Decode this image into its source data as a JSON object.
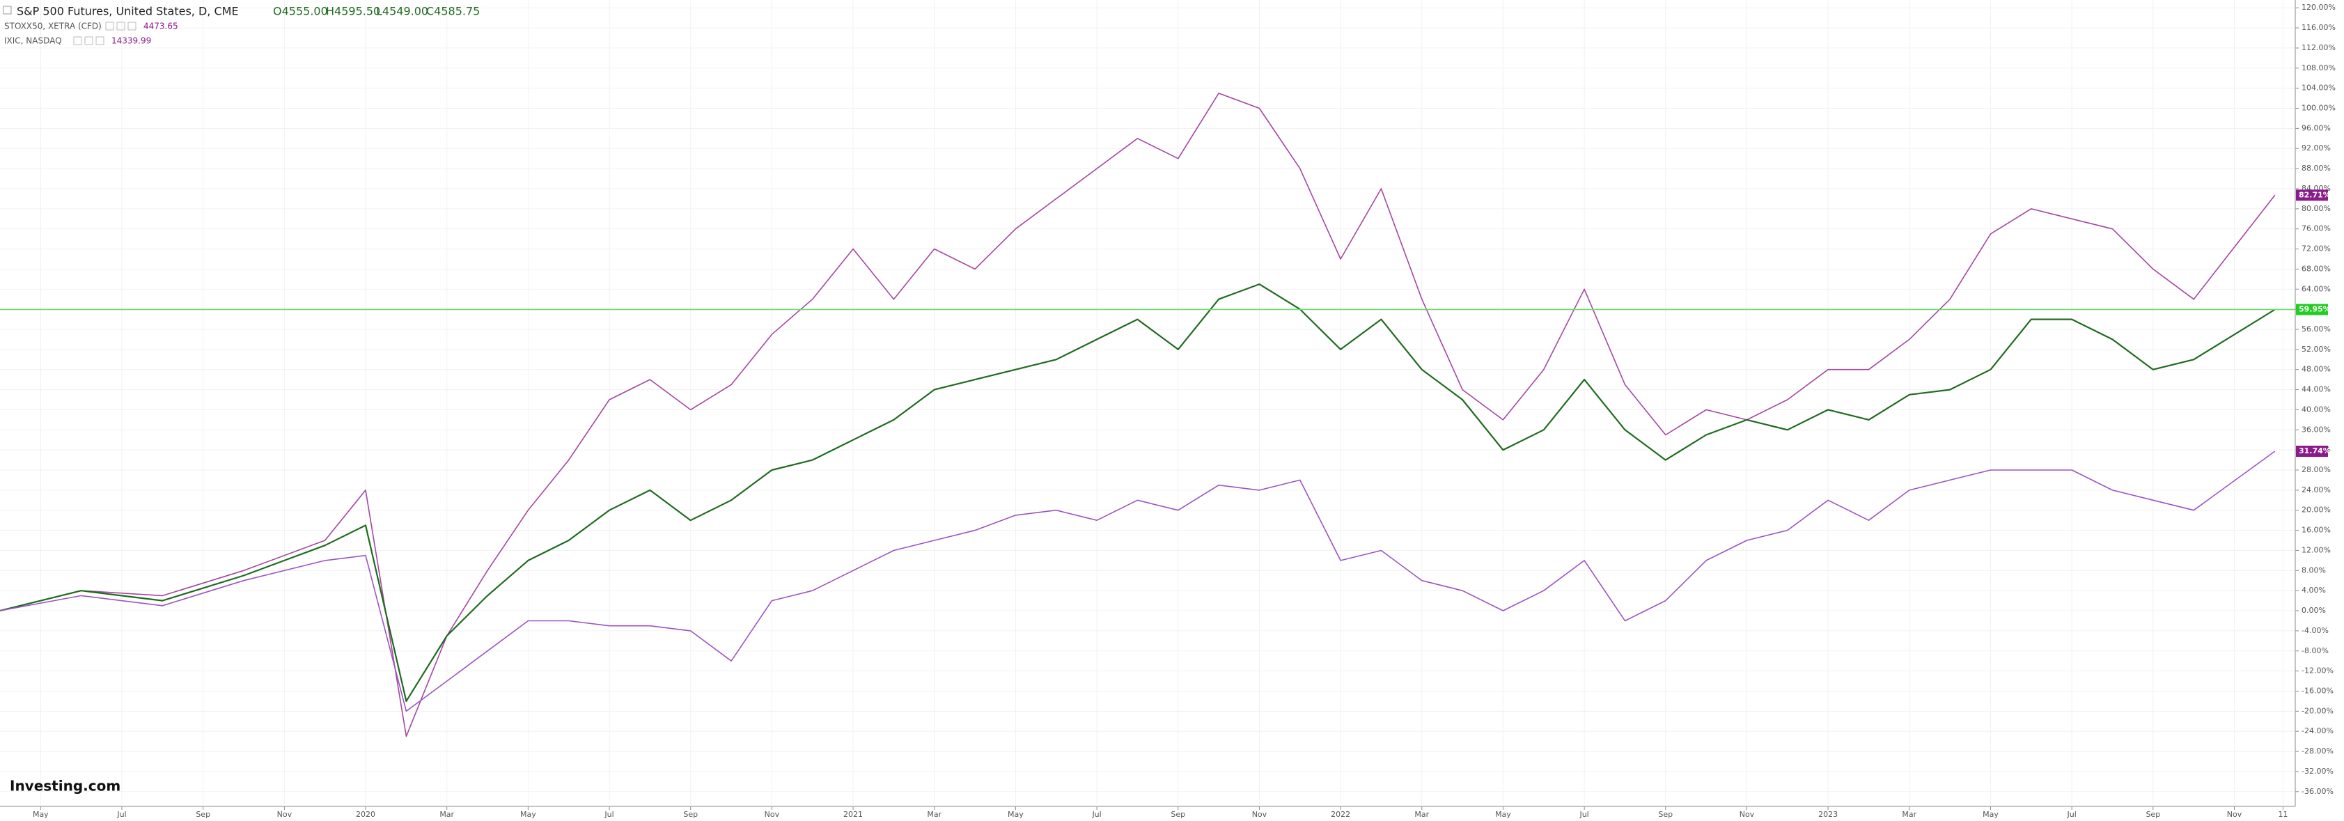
{
  "chart_data": {
    "type": "line",
    "title": "S&P 500 Futures, United States, D, CME",
    "ohlc": [
      "O4555.00",
      "H4595.50",
      "L4549.00",
      "C4585.75"
    ],
    "watermark": "Investing.com",
    "x": [
      -1,
      1,
      3,
      5,
      7,
      8,
      9,
      10,
      11,
      12,
      13,
      14,
      15,
      16,
      17,
      18,
      19,
      20,
      21,
      22,
      23,
      24,
      25,
      26,
      27,
      28,
      29,
      30,
      31,
      32,
      33,
      34,
      35,
      36,
      37,
      38,
      39,
      40,
      41,
      42,
      43,
      44,
      45,
      46,
      47,
      48,
      49,
      50,
      51,
      52,
      53,
      55
    ],
    "series": [
      {
        "name": "IXIC, NASDAQ",
        "legend_value": "14339.99",
        "color": "#a3479f",
        "values": [
          0,
          4,
          3,
          8,
          14,
          24,
          -25,
          -5,
          8,
          20,
          30,
          42,
          46,
          40,
          45,
          55,
          62,
          72,
          62,
          72,
          68,
          76,
          82,
          88,
          94,
          90,
          103,
          100,
          88,
          70,
          84,
          62,
          44,
          38,
          48,
          64,
          45,
          35,
          40,
          38,
          42,
          48,
          48,
          54,
          62,
          75,
          80,
          78,
          76,
          68,
          62,
          82.71
        ],
        "value_labels": [
          null,
          null,
          null,
          null,
          null,
          null,
          null,
          null,
          null,
          null,
          null,
          null,
          null,
          null,
          null,
          null,
          null,
          null,
          null,
          null,
          null,
          null,
          null,
          null,
          null,
          null,
          null,
          null,
          null,
          null,
          null,
          null,
          null,
          null,
          null,
          null,
          null,
          null,
          null,
          null,
          null,
          null,
          null,
          null,
          null,
          null,
          null,
          null,
          null,
          null,
          null,
          "82.71%"
        ],
        "label_color": "#8b1a8b"
      },
      {
        "name": "S&P 500 Futures",
        "color": "#1f6b1f",
        "price_line": true,
        "values": [
          0,
          4,
          2,
          7,
          13,
          17,
          -18,
          -5,
          3,
          10,
          14,
          20,
          24,
          18,
          22,
          28,
          30,
          34,
          38,
          44,
          46,
          48,
          50,
          54,
          58,
          52,
          62,
          65,
          60,
          52,
          58,
          48,
          42,
          32,
          36,
          46,
          36,
          30,
          35,
          38,
          36,
          40,
          38,
          43,
          44,
          48,
          58,
          58,
          54,
          48,
          50,
          59.95
        ],
        "value_labels": [
          null,
          null,
          null,
          null,
          null,
          null,
          null,
          null,
          null,
          null,
          null,
          null,
          null,
          null,
          null,
          null,
          null,
          null,
          null,
          null,
          null,
          null,
          null,
          null,
          null,
          null,
          null,
          null,
          null,
          null,
          null,
          null,
          null,
          null,
          null,
          null,
          null,
          null,
          null,
          null,
          null,
          null,
          null,
          null,
          null,
          null,
          null,
          null,
          null,
          null,
          null,
          "59.95%"
        ],
        "label_color": "#22cc22"
      },
      {
        "name": "STOXX50, XETRA (CFD)",
        "legend_value": "4473.65",
        "color": "#9b55c0",
        "values": [
          0,
          3,
          1,
          6,
          10,
          11,
          -20,
          -14,
          -8,
          -2,
          -2,
          -3,
          -3,
          -4,
          -10,
          2,
          4,
          8,
          12,
          14,
          16,
          19,
          20,
          18,
          22,
          20,
          25,
          24,
          26,
          10,
          12,
          6,
          4,
          0,
          4,
          10,
          -2,
          2,
          10,
          14,
          16,
          22,
          18,
          24,
          26,
          28,
          28,
          28,
          24,
          22,
          20,
          31.74
        ],
        "value_labels": [
          null,
          null,
          null,
          null,
          null,
          null,
          null,
          null,
          null,
          null,
          null,
          null,
          null,
          null,
          null,
          null,
          null,
          null,
          null,
          null,
          null,
          null,
          null,
          null,
          null,
          null,
          null,
          null,
          null,
          null,
          null,
          null,
          null,
          null,
          null,
          null,
          null,
          null,
          null,
          null,
          null,
          null,
          null,
          null,
          null,
          null,
          null,
          null,
          null,
          null,
          null,
          "31.74%"
        ],
        "label_color": "#8b1a8b"
      }
    ],
    "xlim": [
      -1,
      55.5
    ],
    "xticks": [
      {
        "value": 0,
        "label": "May"
      },
      {
        "value": 2,
        "label": "Jul"
      },
      {
        "value": 4,
        "label": "Sep"
      },
      {
        "value": 6,
        "label": "Nov"
      },
      {
        "value": 8,
        "label": "2020"
      },
      {
        "value": 10,
        "label": "Mar"
      },
      {
        "value": 12,
        "label": "May"
      },
      {
        "value": 14,
        "label": "Jul"
      },
      {
        "value": 16,
        "label": "Sep"
      },
      {
        "value": 18,
        "label": "Nov"
      },
      {
        "value": 20,
        "label": "2021"
      },
      {
        "value": 22,
        "label": "Mar"
      },
      {
        "value": 24,
        "label": "May"
      },
      {
        "value": 26,
        "label": "Jul"
      },
      {
        "value": 28,
        "label": "Sep"
      },
      {
        "value": 30,
        "label": "Nov"
      },
      {
        "value": 32,
        "label": "2022"
      },
      {
        "value": 34,
        "label": "Mar"
      },
      {
        "value": 36,
        "label": "May"
      },
      {
        "value": 38,
        "label": "Jul"
      },
      {
        "value": 40,
        "label": "Sep"
      },
      {
        "value": 42,
        "label": "Nov"
      },
      {
        "value": 44,
        "label": "2023"
      },
      {
        "value": 46,
        "label": "Mar"
      },
      {
        "value": 48,
        "label": "May"
      },
      {
        "value": 50,
        "label": "Jul"
      },
      {
        "value": 52,
        "label": "Sep"
      },
      {
        "value": 54,
        "label": "Nov"
      },
      {
        "value": 55.2,
        "label": "11"
      }
    ],
    "ylim": [
      -37,
      121
    ],
    "yticks": [
      {
        "value": 120,
        "label": "120.00%"
      },
      {
        "value": 116,
        "label": "116.00%"
      },
      {
        "value": 112,
        "label": "112.00%"
      },
      {
        "value": 108,
        "label": "108.00%"
      },
      {
        "value": 104,
        "label": "104.00%"
      },
      {
        "value": 100,
        "label": "100.00%"
      },
      {
        "value": 96,
        "label": "96.00%"
      },
      {
        "value": 92,
        "label": "92.00%"
      },
      {
        "value": 88,
        "label": "88.00%"
      },
      {
        "value": 84,
        "label": "84.00%"
      },
      {
        "value": 80,
        "label": "80.00%"
      },
      {
        "value": 76,
        "label": "76.00%"
      },
      {
        "value": 72,
        "label": "72.00%"
      },
      {
        "value": 68,
        "label": "68.00%"
      },
      {
        "value": 64,
        "label": "64.00%"
      },
      {
        "value": 60,
        "label": "60.00%"
      },
      {
        "value": 56,
        "label": "56.00%"
      },
      {
        "value": 52,
        "label": "52.00%"
      },
      {
        "value": 48,
        "label": "48.00%"
      },
      {
        "value": 44,
        "label": "44.00%"
      },
      {
        "value": 40,
        "label": "40.00%"
      },
      {
        "value": 36,
        "label": "36.00%"
      },
      {
        "value": 32,
        "label": "32.00%"
      },
      {
        "value": 28,
        "label": "28.00%"
      },
      {
        "value": 24,
        "label": "24.00%"
      },
      {
        "value": 20,
        "label": "20.00%"
      },
      {
        "value": 16,
        "label": "16.00%"
      },
      {
        "value": 12,
        "label": "12.00%"
      },
      {
        "value": 8,
        "label": "8.00%"
      },
      {
        "value": 4,
        "label": "4.00%"
      },
      {
        "value": 0,
        "label": "0.00%"
      },
      {
        "value": -4,
        "label": "-4.00%"
      },
      {
        "value": -8,
        "label": "-8.00%"
      },
      {
        "value": -12,
        "label": "-12.00%"
      },
      {
        "value": -16,
        "label": "-16.00%"
      },
      {
        "value": -20,
        "label": "-20.00%"
      },
      {
        "value": -24,
        "label": "-24.00%"
      },
      {
        "value": -28,
        "label": "-28.00%"
      },
      {
        "value": -32,
        "label": "-32.00%"
      },
      {
        "value": -36,
        "label": "-36.00%"
      }
    ],
    "grid": true
  }
}
